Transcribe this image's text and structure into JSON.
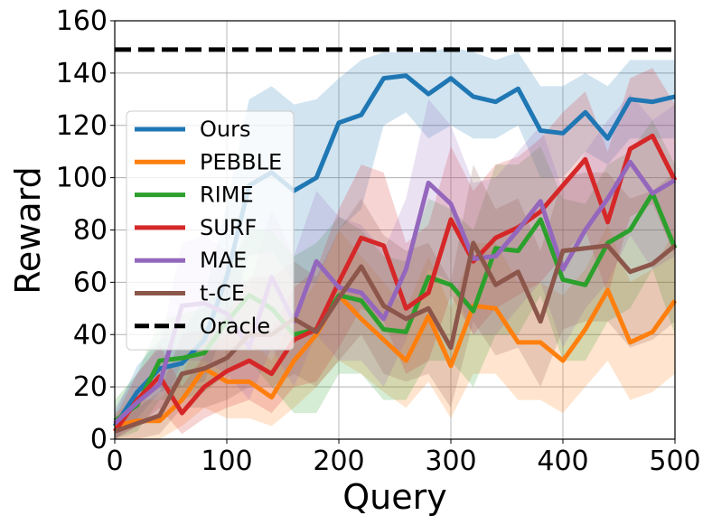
{
  "chart_data": {
    "type": "line",
    "title": "",
    "xlabel": "Query",
    "ylabel": "Reward",
    "xlim": [
      0,
      500
    ],
    "ylim": [
      0,
      160
    ],
    "xticks": [
      0,
      100,
      200,
      300,
      400,
      500
    ],
    "yticks": [
      0,
      20,
      40,
      60,
      80,
      100,
      120,
      140,
      160
    ],
    "grid": true,
    "legend_position": "center-left",
    "x": [
      0,
      20,
      40,
      60,
      80,
      100,
      120,
      140,
      160,
      180,
      200,
      220,
      240,
      260,
      280,
      300,
      320,
      340,
      360,
      380,
      400,
      420,
      440,
      460,
      480,
      500
    ],
    "series": [
      {
        "name": "Ours",
        "color": "#1f77b4",
        "style": "solid",
        "values": [
          5,
          18,
          27,
          29,
          38,
          62,
          97,
          102,
          95,
          100,
          121,
          124,
          138,
          139,
          132,
          138,
          131,
          129,
          134,
          118,
          117,
          125,
          115,
          130,
          129,
          131
        ],
        "lower": [
          0,
          8,
          18,
          20,
          22,
          45,
          70,
          72,
          60,
          60,
          80,
          88,
          120,
          125,
          115,
          120,
          115,
          115,
          120,
          100,
          100,
          110,
          105,
          115,
          115,
          115
        ],
        "upper": [
          10,
          28,
          38,
          40,
          55,
          90,
          130,
          135,
          128,
          130,
          138,
          145,
          148,
          148,
          148,
          150,
          148,
          145,
          148,
          135,
          135,
          140,
          135,
          145,
          145,
          145
        ]
      },
      {
        "name": "PEBBLE",
        "color": "#ff7f0e",
        "style": "solid",
        "values": [
          5,
          7,
          7,
          15,
          27,
          22,
          22,
          16,
          30,
          40,
          55,
          46,
          38,
          30,
          47,
          28,
          51,
          50,
          37,
          37,
          30,
          42,
          57,
          37,
          41,
          53
        ],
        "lower": [
          0,
          0,
          0,
          5,
          12,
          8,
          8,
          5,
          12,
          20,
          30,
          25,
          18,
          12,
          22,
          8,
          25,
          25,
          15,
          15,
          10,
          20,
          30,
          15,
          18,
          25
        ],
        "upper": [
          10,
          15,
          15,
          25,
          42,
          38,
          38,
          30,
          48,
          60,
          80,
          70,
          60,
          50,
          70,
          50,
          75,
          75,
          60,
          60,
          55,
          65,
          82,
          60,
          65,
          80
        ]
      },
      {
        "name": "RIME",
        "color": "#2ca02c",
        "style": "solid",
        "values": [
          7,
          13,
          30,
          31,
          33,
          45,
          55,
          50,
          40,
          42,
          55,
          53,
          42,
          41,
          62,
          59,
          49,
          73,
          72,
          84,
          61,
          59,
          75,
          80,
          94,
          73
        ],
        "lower": [
          0,
          3,
          15,
          15,
          18,
          25,
          30,
          20,
          10,
          10,
          25,
          25,
          15,
          15,
          30,
          30,
          20,
          40,
          40,
          55,
          30,
          30,
          45,
          50,
          65,
          40
        ],
        "upper": [
          15,
          25,
          45,
          48,
          50,
          65,
          80,
          80,
          70,
          75,
          85,
          80,
          70,
          68,
          92,
          88,
          80,
          105,
          105,
          112,
          92,
          90,
          105,
          110,
          122,
          105
        ]
      },
      {
        "name": "SURF",
        "color": "#d62728",
        "style": "solid",
        "values": [
          3,
          15,
          24,
          10,
          20,
          26,
          30,
          25,
          38,
          42,
          60,
          77,
          74,
          50,
          56,
          84,
          68,
          77,
          81,
          87,
          97,
          107,
          83,
          111,
          116,
          99
        ],
        "lower": [
          0,
          5,
          12,
          2,
          8,
          12,
          15,
          10,
          20,
          22,
          35,
          50,
          45,
          25,
          30,
          55,
          40,
          50,
          55,
          60,
          70,
          80,
          55,
          85,
          90,
          70
        ],
        "upper": [
          8,
          25,
          36,
          20,
          32,
          40,
          45,
          42,
          58,
          65,
          88,
          105,
          102,
          75,
          82,
          112,
          95,
          105,
          108,
          115,
          125,
          133,
          110,
          138,
          142,
          128
        ]
      },
      {
        "name": "MAE",
        "color": "#9467bd",
        "style": "solid",
        "values": [
          6,
          14,
          21,
          51,
          52,
          48,
          35,
          62,
          45,
          68,
          58,
          56,
          46,
          65,
          98,
          90,
          69,
          70,
          80,
          91,
          65,
          80,
          92,
          106,
          94,
          99
        ],
        "lower": [
          0,
          5,
          8,
          30,
          30,
          25,
          15,
          35,
          20,
          40,
          30,
          30,
          20,
          38,
          65,
          60,
          40,
          40,
          50,
          60,
          35,
          50,
          60,
          78,
          65,
          70
        ],
        "upper": [
          12,
          25,
          35,
          75,
          78,
          72,
          58,
          88,
          70,
          95,
          85,
          82,
          72,
          92,
          130,
          120,
          98,
          100,
          110,
          120,
          95,
          110,
          122,
          132,
          122,
          128
        ]
      },
      {
        "name": "t-CE",
        "color": "#8c564b",
        "style": "solid",
        "values": [
          3,
          6,
          9,
          25,
          27,
          31,
          40,
          40,
          46,
          41,
          54,
          66,
          51,
          46,
          50,
          35,
          75,
          59,
          64,
          45,
          72,
          73,
          74,
          64,
          67,
          74
        ],
        "lower": [
          0,
          0,
          2,
          12,
          12,
          15,
          20,
          20,
          25,
          20,
          30,
          40,
          25,
          22,
          25,
          12,
          45,
          32,
          35,
          20,
          42,
          45,
          45,
          35,
          38,
          45
        ],
        "upper": [
          8,
          12,
          18,
          40,
          42,
          48,
          62,
          62,
          68,
          62,
          80,
          92,
          78,
          72,
          75,
          60,
          105,
          88,
          92,
          72,
          100,
          102,
          102,
          92,
          95,
          102
        ]
      }
    ],
    "reference_lines": [
      {
        "name": "Oracle",
        "color": "#000000",
        "style": "dashed",
        "y": 149
      }
    ]
  }
}
